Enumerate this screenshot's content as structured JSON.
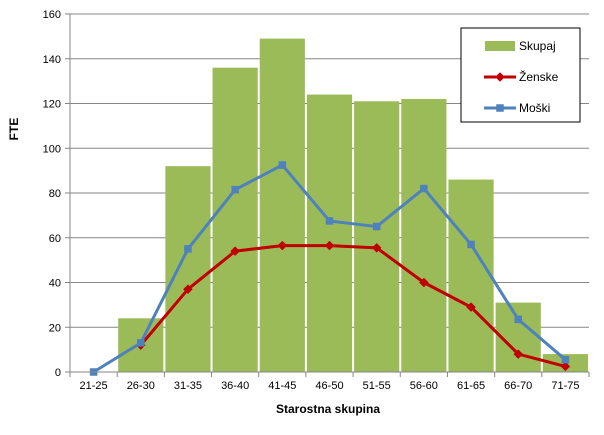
{
  "chart_data": {
    "type": "bar",
    "categories": [
      "21-25",
      "26-30",
      "31-35",
      "36-40",
      "41-45",
      "46-50",
      "51-55",
      "56-60",
      "61-65",
      "66-70",
      "71-75"
    ],
    "xlabel": "Starostna skupina",
    "ylabel": "FTE",
    "ylim": [
      0,
      160
    ],
    "yticks": [
      0,
      20,
      40,
      60,
      80,
      100,
      120,
      140,
      160
    ],
    "grid": true,
    "legend_position": "top-right",
    "series": [
      {
        "name": "Skupaj",
        "type": "bar",
        "color": "#9bbb59",
        "values": [
          0,
          24,
          92,
          136,
          149,
          124,
          121,
          122,
          86,
          31,
          8
        ]
      },
      {
        "name": "Ženske",
        "type": "line",
        "marker": "diamond",
        "color": "#c00000",
        "values": [
          null,
          12,
          37,
          54,
          56.5,
          56.5,
          55.5,
          40,
          29,
          8,
          2.5
        ]
      },
      {
        "name": "Moški",
        "type": "line",
        "marker": "square",
        "color": "#4f81bd",
        "values": [
          0,
          13,
          55,
          81.5,
          92.5,
          67.5,
          65,
          82,
          57,
          23.5,
          5.5
        ]
      }
    ]
  }
}
